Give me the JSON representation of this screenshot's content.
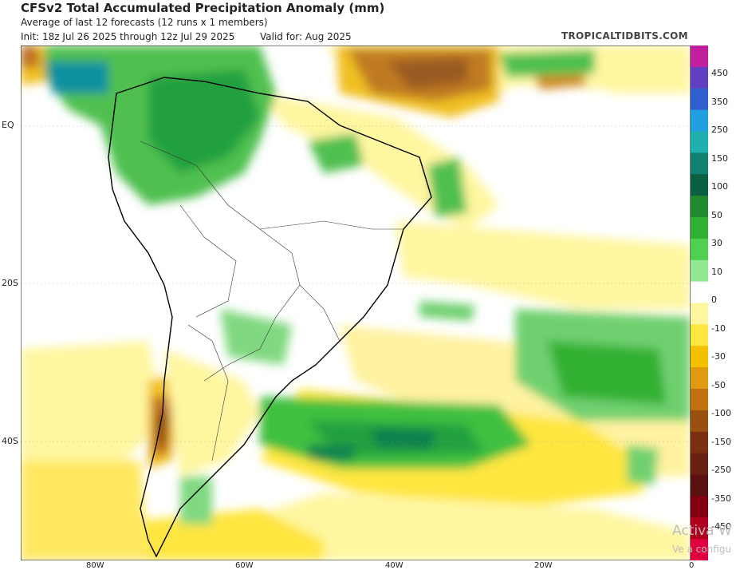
{
  "header": {
    "title": "CFSv2 Total Accumulated Precipitation Anomaly (mm)",
    "subtitle": "Average of last 12 forecasts (12 runs x 1 members)",
    "init": "Init: 18z Jul 26 2025 through 12z Jul 29 2025",
    "valid": "Valid for: Aug 2025",
    "brand": "TROPICALTIDBITS.COM"
  },
  "axes": {
    "lat_labels": [
      "EQ",
      "20S",
      "40S"
    ],
    "lon_labels": [
      "80W",
      "60W",
      "40W",
      "20W",
      "0"
    ]
  },
  "colorbar": {
    "labels": [
      "450",
      "350",
      "250",
      "150",
      "100",
      "50",
      "30",
      "10",
      "0",
      "-10",
      "-30",
      "-50",
      "-100",
      "-150",
      "-250",
      "-350",
      "-450"
    ],
    "colors": [
      "#c020a0",
      "#6040c0",
      "#3060d0",
      "#20a0e0",
      "#20b0b0",
      "#108070",
      "#0a6040",
      "#208a30",
      "#30b030",
      "#50d050",
      "#90e890",
      "#ffffff",
      "#fff6a0",
      "#ffe640",
      "#f5c000",
      "#e09a10",
      "#c07010",
      "#9a5010",
      "#7a3010",
      "#6a2010",
      "#5a1010",
      "#800010",
      "#b00020",
      "#e00040"
    ]
  },
  "watermark": {
    "line1": "Activa W",
    "line2": "Ve a configu"
  }
}
